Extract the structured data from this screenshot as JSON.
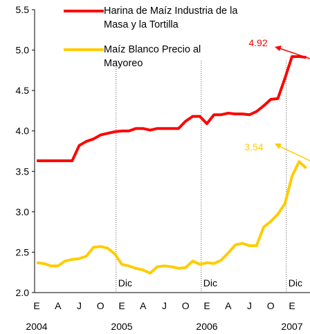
{
  "chart_data": {
    "type": "line",
    "categories": [
      "E",
      null,
      null,
      "A",
      null,
      null,
      "J",
      null,
      null,
      "O",
      null,
      null,
      "E",
      null,
      null,
      "A",
      null,
      null,
      "J",
      null,
      null,
      "O",
      null,
      null,
      "E",
      null,
      null,
      "A",
      null,
      null,
      "J",
      null,
      null,
      "O",
      null,
      null,
      "E",
      null,
      null
    ],
    "year_labels": [
      "2004",
      "2005",
      "2006",
      "2007"
    ],
    "series": [
      {
        "name": "Harina de Maíz Industria de la Masa y la Tortilla",
        "color": "#ff0000",
        "values": [
          3.63,
          3.63,
          3.63,
          3.63,
          3.63,
          3.63,
          3.82,
          3.87,
          3.9,
          3.95,
          3.97,
          3.99,
          4.0,
          4.0,
          4.03,
          4.03,
          4.01,
          4.03,
          4.03,
          4.03,
          4.03,
          4.12,
          4.18,
          4.18,
          4.09,
          4.2,
          4.2,
          4.22,
          4.21,
          4.21,
          4.2,
          4.24,
          4.31,
          4.39,
          4.4,
          4.65,
          4.92,
          4.92,
          4.91
        ]
      },
      {
        "name": "Maíz Blanco Precio al Mayoreo",
        "color": "#ffcc00",
        "values": [
          2.37,
          2.36,
          2.33,
          2.33,
          2.39,
          2.41,
          2.42,
          2.45,
          2.56,
          2.57,
          2.55,
          2.48,
          2.35,
          2.33,
          2.3,
          2.28,
          2.24,
          2.32,
          2.33,
          2.32,
          2.3,
          2.31,
          2.39,
          2.35,
          2.37,
          2.36,
          2.4,
          2.49,
          2.59,
          2.61,
          2.58,
          2.58,
          2.81,
          2.88,
          2.97,
          3.1,
          3.44,
          3.62,
          3.54
        ]
      }
    ],
    "markers": [
      {
        "at": 11,
        "label": "Dic"
      },
      {
        "at": 23,
        "label": "Dic"
      },
      {
        "at": 35,
        "label": "Dic"
      }
    ],
    "annotations": [
      {
        "label": "4.92"
      },
      {
        "label": "3.54"
      }
    ],
    "ylim": [
      2,
      5.5
    ],
    "yticks": [
      {
        "value": 2,
        "label": "2.0"
      },
      2.5,
      {
        "value": 3,
        "label": "3.0"
      },
      3.5,
      {
        "value": 4,
        "label": "4.0"
      },
      4.5,
      {
        "value": 5,
        "label": "5.0"
      },
      5.5
    ]
  }
}
